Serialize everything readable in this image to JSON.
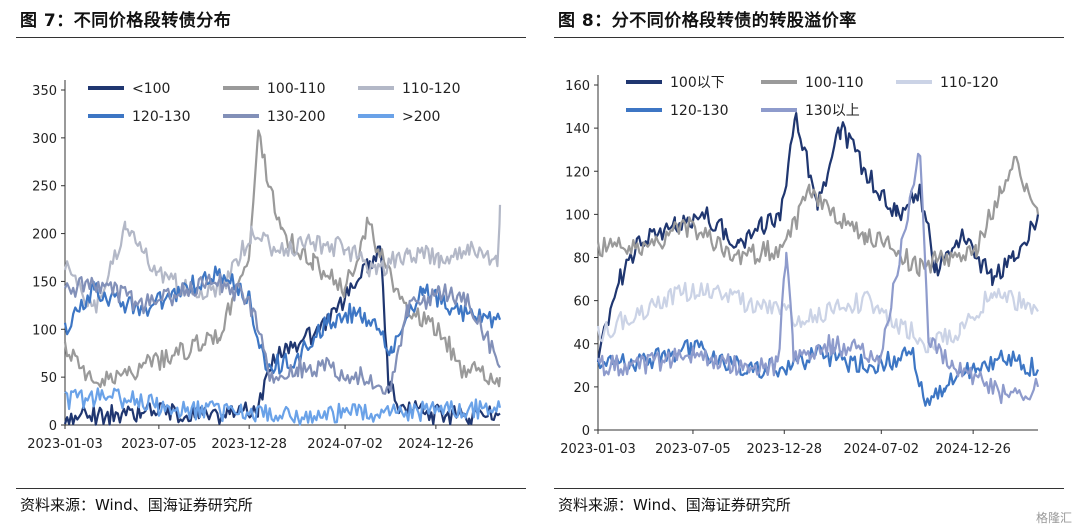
{
  "figures": [
    {
      "title": "图 7：不同价格段转债分布",
      "source": "资料来源：Wind、国海证券研究所"
    },
    {
      "title": "图 8：分不同价格段转债的转股溢价率",
      "source": "资料来源：Wind、国海证券研究所"
    }
  ],
  "watermark": "格隆汇",
  "chart_data": [
    {
      "type": "line",
      "title": "不同价格段转债分布",
      "ylim": [
        0,
        350
      ],
      "yticks": [
        0,
        50,
        100,
        150,
        200,
        250,
        300,
        350
      ],
      "xlim": [
        "2023-01-03",
        "2025-04-30"
      ],
      "xticks": [
        "2023-01-03",
        "2023-07-05",
        "2023-12-28",
        "2024-07-02",
        "2024-12-26"
      ],
      "legend_placement": "top",
      "series": [
        {
          "name": "<100",
          "color": "#1f3670",
          "x": [
            "2023-01-03",
            "2023-03-15",
            "2023-06-01",
            "2023-09-01",
            "2023-12-01",
            "2024-01-15",
            "2024-02-05",
            "2024-03-10",
            "2024-05-01",
            "2024-06-15",
            "2024-08-15",
            "2024-09-10",
            "2024-09-25",
            "2024-10-15",
            "2024-12-01",
            "2025-01-15",
            "2025-03-01",
            "2025-04-30"
          ],
          "values": [
            8,
            10,
            14,
            10,
            12,
            18,
            60,
            80,
            95,
            120,
            165,
            180,
            40,
            20,
            12,
            10,
            8,
            12
          ]
        },
        {
          "name": "100-110",
          "color": "#9a9a9a",
          "x": [
            "2023-01-03",
            "2023-03-01",
            "2023-06-01",
            "2023-09-01",
            "2023-11-01",
            "2023-12-28",
            "2024-01-15",
            "2024-03-01",
            "2024-05-01",
            "2024-07-01",
            "2024-08-15",
            "2024-10-01",
            "2024-11-01",
            "2025-01-01",
            "2025-02-15",
            "2025-04-30"
          ],
          "values": [
            85,
            45,
            60,
            80,
            95,
            180,
            300,
            200,
            170,
            140,
            210,
            150,
            120,
            100,
            60,
            50
          ]
        },
        {
          "name": "110-120",
          "color": "#b3b8c7",
          "x": [
            "2023-01-03",
            "2023-03-01",
            "2023-05-01",
            "2023-07-01",
            "2023-09-01",
            "2023-11-01",
            "2024-01-01",
            "2024-03-01",
            "2024-05-01",
            "2024-07-01",
            "2024-09-01",
            "2024-11-01",
            "2025-01-01",
            "2025-03-01",
            "2025-04-25",
            "2025-04-30"
          ],
          "values": [
            170,
            120,
            205,
            160,
            140,
            140,
            200,
            180,
            190,
            185,
            160,
            180,
            175,
            185,
            170,
            230
          ]
        },
        {
          "name": "120-130",
          "color": "#3d76c4",
          "x": [
            "2023-01-03",
            "2023-03-01",
            "2023-06-01",
            "2023-09-01",
            "2023-11-01",
            "2023-12-28",
            "2024-02-01",
            "2024-04-01",
            "2024-06-01",
            "2024-08-01",
            "2024-10-01",
            "2024-12-01",
            "2025-02-01",
            "2025-04-30"
          ],
          "values": [
            100,
            140,
            120,
            145,
            160,
            130,
            60,
            70,
            110,
            120,
            80,
            140,
            120,
            110
          ]
        },
        {
          "name": "130-200",
          "color": "#8290b8",
          "x": [
            "2023-01-03",
            "2023-03-01",
            "2023-06-01",
            "2023-09-01",
            "2023-11-01",
            "2023-12-28",
            "2024-02-15",
            "2024-04-01",
            "2024-06-01",
            "2024-08-01",
            "2024-09-25",
            "2024-11-01",
            "2025-01-01",
            "2025-03-01",
            "2025-04-30"
          ],
          "values": [
            140,
            150,
            125,
            140,
            150,
            130,
            40,
            60,
            60,
            50,
            30,
            120,
            140,
            130,
            60
          ]
        },
        {
          "name": ">200",
          "color": "#6aa2e8",
          "x": [
            "2023-01-03",
            "2023-04-01",
            "2023-07-01",
            "2023-10-01",
            "2024-01-01",
            "2024-04-01",
            "2024-07-01",
            "2024-10-01",
            "2025-01-01",
            "2025-04-30"
          ],
          "values": [
            25,
            30,
            20,
            15,
            12,
            10,
            12,
            12,
            15,
            18
          ]
        }
      ]
    },
    {
      "type": "line",
      "title": "分不同价格段转债的转股溢价率",
      "ylim": [
        0,
        160
      ],
      "yticks": [
        0,
        20,
        40,
        60,
        80,
        100,
        120,
        140,
        160
      ],
      "xlim": [
        "2023-01-03",
        "2025-04-30"
      ],
      "xticks": [
        "2023-01-03",
        "2023-07-05",
        "2023-12-28",
        "2024-07-02",
        "2024-12-26"
      ],
      "legend_placement": "top",
      "series": [
        {
          "name": "100以下",
          "color": "#1f3670",
          "x": [
            "2023-01-03",
            "2023-02-15",
            "2023-04-01",
            "2023-06-01",
            "2023-08-01",
            "2023-10-01",
            "2023-11-15",
            "2023-12-20",
            "2024-01-20",
            "2024-03-01",
            "2024-04-15",
            "2024-06-01",
            "2024-08-01",
            "2024-09-15",
            "2024-10-15",
            "2024-12-01",
            "2025-02-01",
            "2025-03-15",
            "2025-04-30"
          ],
          "values": [
            35,
            70,
            90,
            95,
            100,
            85,
            95,
            100,
            145,
            105,
            140,
            120,
            100,
            110,
            75,
            90,
            70,
            80,
            100
          ]
        },
        {
          "name": "100-110",
          "color": "#9a9a9a",
          "x": [
            "2023-01-03",
            "2023-04-01",
            "2023-07-01",
            "2023-10-01",
            "2023-12-28",
            "2024-02-15",
            "2024-04-01",
            "2024-06-01",
            "2024-07-15",
            "2024-09-15",
            "2024-11-01",
            "2025-01-01",
            "2025-02-15",
            "2025-03-15",
            "2025-04-30"
          ],
          "values": [
            85,
            85,
            95,
            80,
            85,
            110,
            100,
            90,
            85,
            75,
            80,
            85,
            110,
            125,
            100
          ]
        },
        {
          "name": "110-120",
          "color": "#cbd3e6",
          "x": [
            "2023-01-03",
            "2023-04-01",
            "2023-07-01",
            "2023-10-01",
            "2023-12-28",
            "2024-02-01",
            "2024-04-01",
            "2024-06-01",
            "2024-08-01",
            "2024-10-01",
            "2024-12-01",
            "2025-02-01",
            "2025-04-30"
          ],
          "values": [
            45,
            55,
            65,
            60,
            55,
            50,
            55,
            60,
            50,
            40,
            45,
            65,
            55
          ]
        },
        {
          "name": "120-130",
          "color": "#3d76c4",
          "x": [
            "2023-01-03",
            "2023-04-01",
            "2023-07-01",
            "2023-10-01",
            "2023-12-28",
            "2024-03-01",
            "2024-06-01",
            "2024-09-01",
            "2024-09-25",
            "2024-11-01",
            "2025-01-01",
            "2025-03-01",
            "2025-04-30"
          ],
          "values": [
            30,
            32,
            38,
            30,
            28,
            35,
            30,
            35,
            15,
            20,
            30,
            35,
            28
          ]
        },
        {
          "name": "130以上",
          "color": "#8e9bcc",
          "x": [
            "2023-01-03",
            "2023-04-01",
            "2023-07-01",
            "2023-10-01",
            "2023-12-15",
            "2024-01-01",
            "2024-01-15",
            "2024-04-01",
            "2024-07-01",
            "2024-09-15",
            "2024-10-01",
            "2024-11-15",
            "2025-01-01",
            "2025-03-01",
            "2025-04-30"
          ],
          "values": [
            30,
            30,
            35,
            30,
            30,
            80,
            35,
            40,
            35,
            130,
            40,
            30,
            25,
            15,
            20
          ]
        }
      ]
    }
  ]
}
